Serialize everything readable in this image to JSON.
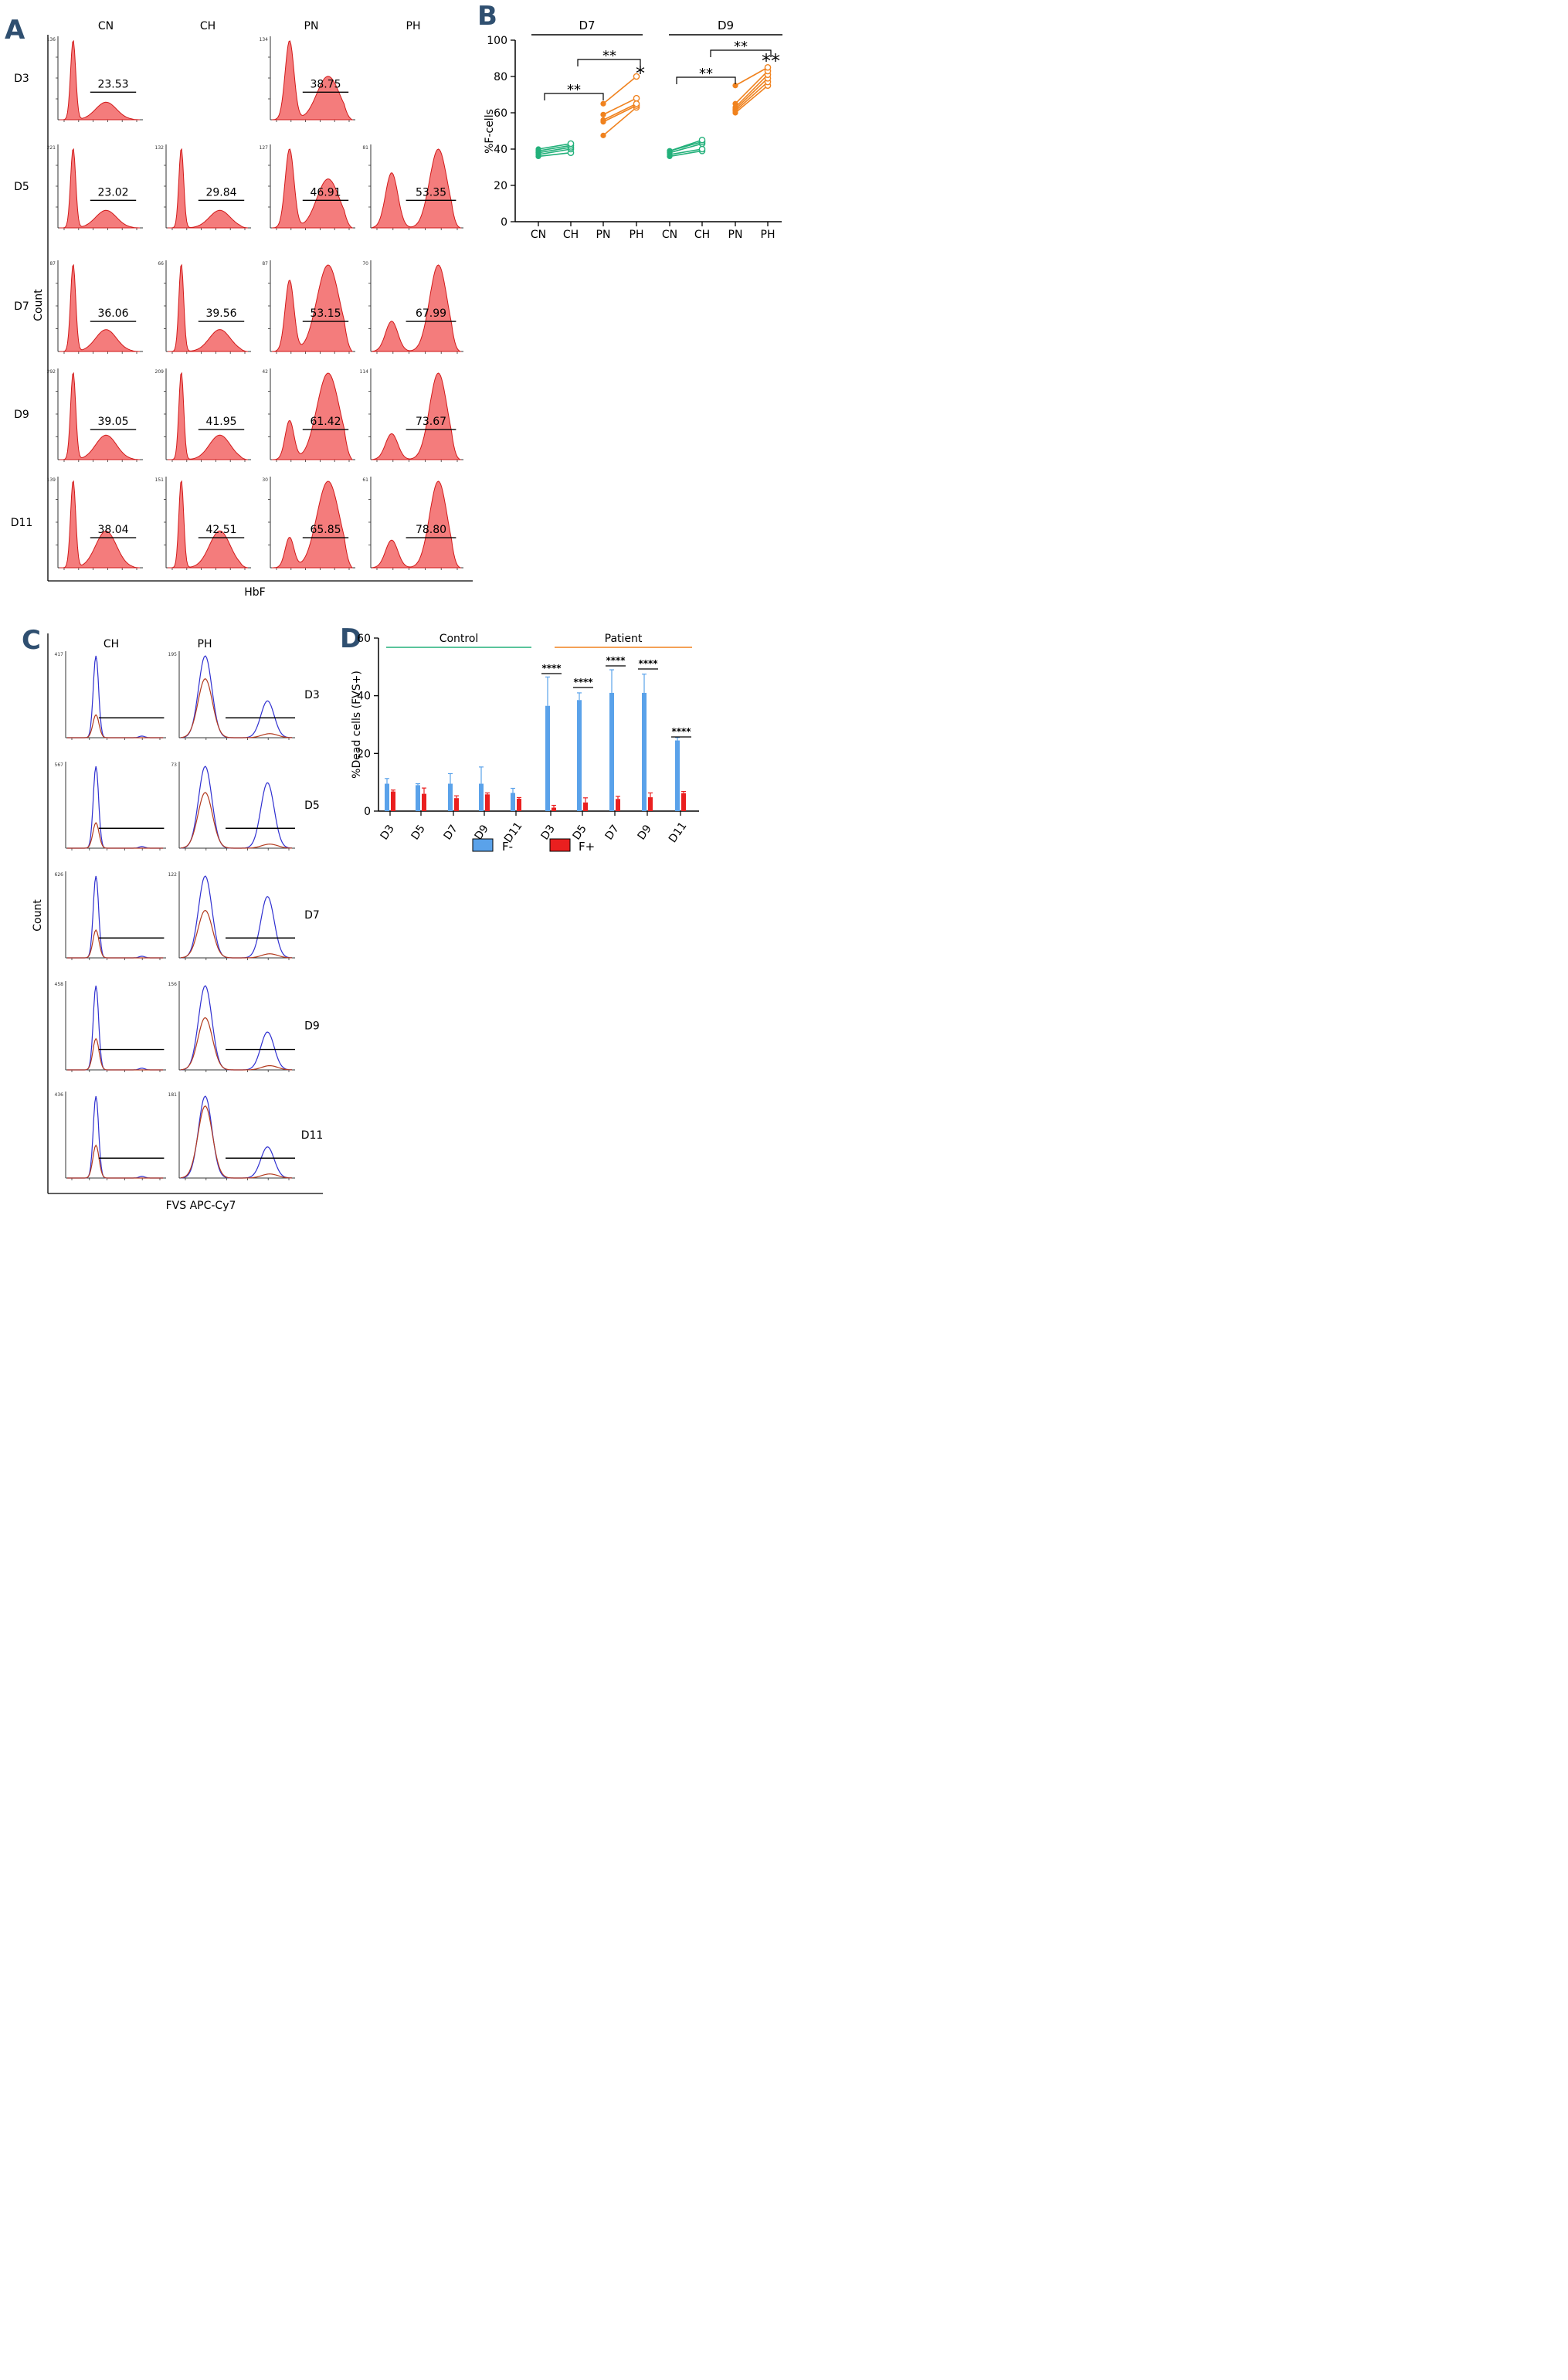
{
  "panels": {
    "A": {
      "letter": "A",
      "columns": [
        "CN",
        "CH",
        "PN",
        "PH"
      ],
      "rows": [
        "D3",
        "D5",
        "D7",
        "D9",
        "D11"
      ],
      "ylabel": "Count",
      "xlabel": "HbF",
      "hist_values": [
        [
          "23.53",
          null,
          "38.75",
          null
        ],
        [
          "23.02",
          "29.84",
          "46.91",
          "53.35"
        ],
        [
          "36.06",
          "39.56",
          "53.15",
          "67.99"
        ],
        [
          "39.05",
          "41.95",
          "61.42",
          "73.67"
        ],
        [
          "38.04",
          "42.51",
          "65.85",
          "78.80"
        ]
      ],
      "ymax_ticks": [
        [
          "136",
          null,
          "134",
          null
        ],
        [
          "221",
          "132",
          "127",
          "81"
        ],
        [
          "87",
          "66",
          "87",
          "70"
        ],
        [
          "292",
          "209",
          "42",
          "114"
        ],
        [
          "139",
          "151",
          "30",
          "61"
        ]
      ]
    },
    "B": {
      "letter": "B",
      "groups": [
        "D7",
        "D9"
      ],
      "ylabel": "%F-cells",
      "categories": [
        "CN",
        "CH",
        "PN",
        "PH"
      ],
      "yticks": [
        "0",
        "20",
        "40",
        "60",
        "80",
        "100"
      ],
      "sig_labels": [
        "**",
        "**",
        "*",
        "**",
        "**",
        "**"
      ]
    },
    "C": {
      "letter": "C",
      "columns": [
        "CH",
        "PH"
      ],
      "rows": [
        "D3",
        "D5",
        "D7",
        "D9",
        "D11"
      ],
      "ylabel": "Count",
      "xlabel": "FVS APC-Cy7",
      "ymax_ticks": [
        [
          "417",
          "195"
        ],
        [
          "567",
          "73"
        ],
        [
          "626",
          "122"
        ],
        [
          "458",
          "156"
        ],
        [
          "436",
          "181"
        ]
      ]
    },
    "D": {
      "letter": "D",
      "group_labels": [
        "Control",
        "Patient"
      ],
      "ylabel": "%Dead cells (FVS+)",
      "yticks": [
        "0",
        "20",
        "40",
        "60"
      ],
      "legend": [
        "F-",
        "F+"
      ],
      "sig_label": "****"
    }
  },
  "chart_data": [
    {
      "type": "histogram-grid",
      "title": "A",
      "xlabel": "HbF",
      "ylabel": "Count",
      "columns": [
        "CN",
        "CH",
        "PN",
        "PH"
      ],
      "rows": [
        "D3",
        "D5",
        "D7",
        "D9",
        "D11"
      ],
      "percent_HbF_positive": {
        "CN": [
          23.53,
          23.02,
          36.06,
          39.05,
          38.04
        ],
        "CH": [
          null,
          29.84,
          39.56,
          41.95,
          42.51
        ],
        "PN": [
          38.75,
          46.91,
          53.15,
          61.42,
          65.85
        ],
        "PH": [
          null,
          53.35,
          67.99,
          73.67,
          78.8
        ]
      }
    },
    {
      "type": "line",
      "title": "B",
      "ylabel": "%F-cells",
      "ylim": [
        0,
        100
      ],
      "groups": [
        {
          "name": "D7",
          "control_pairs": [
            [
              36,
              38
            ],
            [
              37,
              40
            ],
            [
              38,
              41
            ],
            [
              39,
              42
            ],
            [
              40,
              43
            ]
          ],
          "patient_pairs": [
            [
              47.5,
              63
            ],
            [
              55,
              64
            ],
            [
              56,
              65
            ],
            [
              59,
              68
            ],
            [
              65,
              80
            ]
          ]
        },
        {
          "name": "D9",
          "control_pairs": [
            [
              36,
              39
            ],
            [
              37,
              40
            ],
            [
              38,
              43
            ],
            [
              39,
              44
            ],
            [
              39,
              45
            ]
          ],
          "patient_pairs": [
            [
              60,
              75
            ],
            [
              61,
              77
            ],
            [
              62,
              79
            ],
            [
              63,
              81
            ],
            [
              65,
              83
            ],
            [
              75,
              85
            ]
          ]
        }
      ],
      "significance": [
        "CN vs PN: **",
        "CH vs PH: **",
        "PN vs PH: *",
        "D9 CN vs PN: **",
        "D9 CH vs PH: **",
        "D9 PN vs PH: **"
      ]
    },
    {
      "type": "histogram-grid",
      "title": "C",
      "xlabel": "FVS APC-Cy7",
      "ylabel": "Count",
      "columns": [
        "CH",
        "PH"
      ],
      "rows": [
        "D3",
        "D5",
        "D7",
        "D9",
        "D11"
      ],
      "series": [
        "F- (blue)",
        "F+ (red)"
      ]
    },
    {
      "type": "bar",
      "title": "D",
      "ylabel": "%Dead cells (FVS+)",
      "ylim": [
        0,
        60
      ],
      "categories": [
        "D3",
        "D5",
        "D7",
        "D9",
        "D11",
        "D3",
        "D5",
        "D7",
        "D9",
        "D11"
      ],
      "groups": [
        "Control",
        "Control",
        "Control",
        "Control",
        "Control",
        "Patient",
        "Patient",
        "Patient",
        "Patient",
        "Patient"
      ],
      "series": [
        {
          "name": "F-",
          "values": [
            9.5,
            9,
            9.5,
            9.5,
            6.3,
            36.5,
            38.5,
            41,
            41,
            24.5
          ],
          "errors": [
            1.8,
            0.5,
            3.5,
            5.8,
            1.6,
            10,
            2.5,
            8,
            6.5,
            1
          ]
        },
        {
          "name": "F+",
          "values": [
            6.8,
            6,
            4.5,
            5.8,
            4.3,
            1.2,
            3,
            4.2,
            4.8,
            6.2
          ],
          "errors": [
            0.5,
            2,
            0.8,
            0.5,
            0.4,
            0.8,
            1.6,
            0.9,
            1.5,
            0.6
          ]
        }
      ],
      "significance": [
        "****",
        "****",
        "****",
        "****",
        "****"
      ]
    }
  ]
}
